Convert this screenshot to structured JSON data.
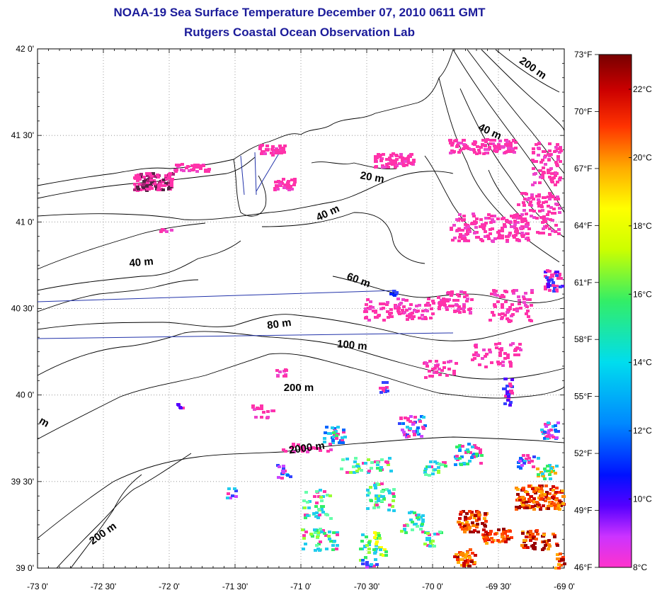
{
  "title": "NOAA-19 Sea Surface Temperature December 07, 2010 0611 GMT",
  "subtitle": "Rutgers Coastal Ocean Observation Lab",
  "lat_labels": [
    "42 0'",
    "41 30'",
    "41 0'",
    "40 30'",
    "40 0'",
    "39 30'",
    "39 0'"
  ],
  "lon_labels": [
    "-73 0'",
    "-72 30'",
    "-72 0'",
    "-71 30'",
    "-71 0'",
    "-70 30'",
    "-70 0'",
    "-69 30'",
    "-69 0'"
  ],
  "fahrenheit_labels": [
    "73°F",
    "70°F",
    "67°F",
    "64°F",
    "61°F",
    "58°F",
    "55°F",
    "52°F",
    "49°F",
    "46°F"
  ],
  "celsius_labels": [
    "22°C",
    "20°C",
    "18°C",
    "16°C",
    "14°C",
    "12°C",
    "10°C",
    "8°C"
  ],
  "isobath_labels": [
    {
      "text": "200 m",
      "rotate": 35
    },
    {
      "text": "40 m",
      "rotate": 25
    },
    {
      "text": "20 m",
      "rotate": 10
    },
    {
      "text": "40 m",
      "rotate": -25
    },
    {
      "text": "40 m",
      "rotate": -5
    },
    {
      "text": "60 m",
      "rotate": 20
    },
    {
      "text": "80 m",
      "rotate": -8
    },
    {
      "text": "100 m",
      "rotate": 5
    },
    {
      "text": "200 m",
      "rotate": 0
    },
    {
      "text": "2000 m",
      "rotate": -8
    },
    {
      "text": "200 m",
      "rotate": -35
    },
    {
      "text": "m",
      "rotate": 30
    }
  ],
  "colors": {
    "title": "#1b1b9a",
    "cold": "#ff33aa",
    "contour": "#000000",
    "track": "#2233aa"
  }
}
